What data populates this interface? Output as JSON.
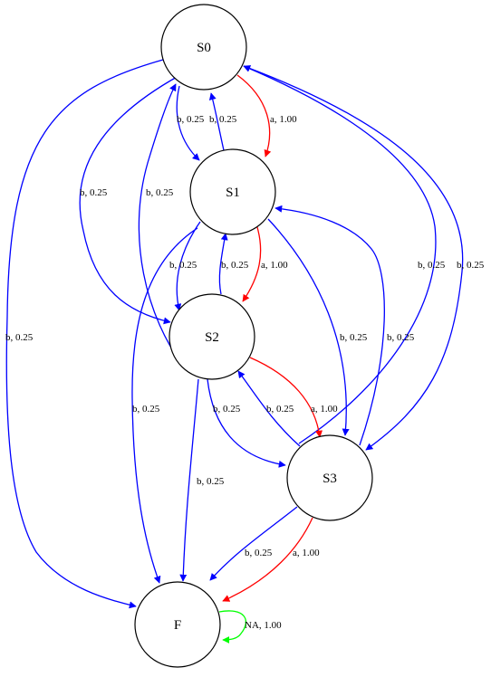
{
  "colors": {
    "blue": "#0000ff",
    "red": "#ff0000",
    "green": "#00ff00",
    "black": "#000000"
  },
  "nodes": [
    {
      "id": "S0",
      "label": "S0"
    },
    {
      "id": "S1",
      "label": "S1"
    },
    {
      "id": "S2",
      "label": "S2"
    },
    {
      "id": "S3",
      "label": "S3"
    },
    {
      "id": "F",
      "label": "F"
    }
  ],
  "edges": [
    {
      "from": "S0",
      "to": "S1",
      "label": "b, 0.25",
      "color": "blue"
    },
    {
      "from": "S1",
      "to": "S0",
      "label": "b, 0.25",
      "color": "blue"
    },
    {
      "from": "S0",
      "to": "S1",
      "label": "a, 1.00",
      "color": "red"
    },
    {
      "from": "S0",
      "to": "S2",
      "label": "b, 0.25",
      "color": "blue"
    },
    {
      "from": "S2",
      "to": "S0",
      "label": "b, 0.25",
      "color": "blue"
    },
    {
      "from": "S0",
      "to": "F",
      "label": "b, 0.25",
      "color": "blue"
    },
    {
      "from": "S3",
      "to": "S0",
      "label": "b, 0.25",
      "color": "blue"
    },
    {
      "from": "S0",
      "to": "S3",
      "label": "b, 0.25",
      "color": "blue"
    },
    {
      "from": "S1",
      "to": "S2",
      "label": "b, 0.25",
      "color": "blue"
    },
    {
      "from": "S2",
      "to": "S1",
      "label": "b, 0.25",
      "color": "blue"
    },
    {
      "from": "S1",
      "to": "S2",
      "label": "a, 1.00",
      "color": "red"
    },
    {
      "from": "S1",
      "to": "S3",
      "label": "b, 0.25",
      "color": "blue"
    },
    {
      "from": "S3",
      "to": "S1",
      "label": "b, 0.25",
      "color": "blue"
    },
    {
      "from": "S1",
      "to": "F",
      "label": "b, 0.25",
      "color": "blue"
    },
    {
      "from": "S2",
      "to": "S3",
      "label": "b, 0.25",
      "color": "blue"
    },
    {
      "from": "S3",
      "to": "S2",
      "label": "b, 0.25",
      "color": "blue"
    },
    {
      "from": "S2",
      "to": "S3",
      "label": "a, 1.00",
      "color": "red"
    },
    {
      "from": "S2",
      "to": "F",
      "label": "b, 0.25",
      "color": "blue"
    },
    {
      "from": "S3",
      "to": "F",
      "label": "b, 0.25",
      "color": "blue"
    },
    {
      "from": "S3",
      "to": "F",
      "label": "a, 1.00",
      "color": "red"
    },
    {
      "from": "F",
      "to": "F",
      "label": "NA, 1.00",
      "color": "green"
    }
  ]
}
